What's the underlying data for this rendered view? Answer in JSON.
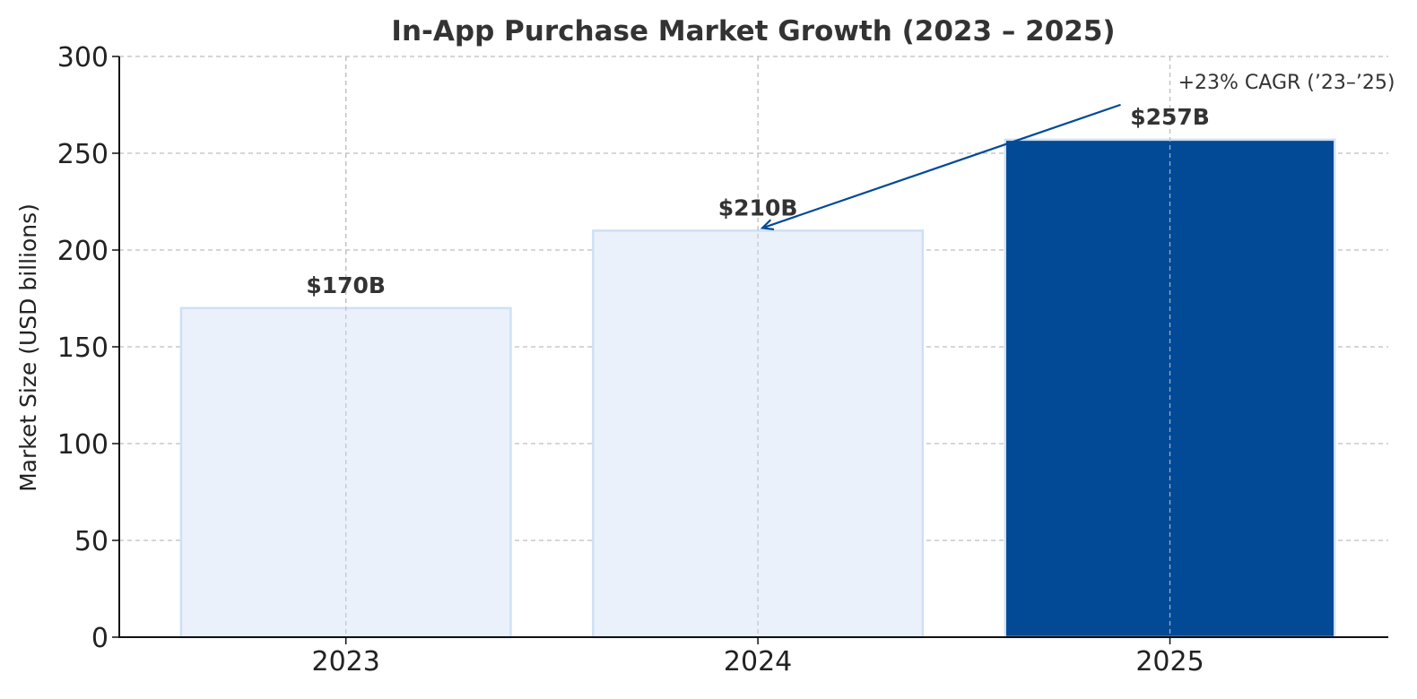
{
  "chart_data": {
    "type": "bar",
    "title": "In-App Purchase Market Growth (2023 – 2025)",
    "xlabel": "",
    "ylabel": "Market Size (USD billions)",
    "categories": [
      "2023",
      "2024",
      "2025"
    ],
    "values": [
      170,
      210,
      257
    ],
    "data_labels": [
      "$170B",
      "$210B",
      "$257B"
    ],
    "ylim": [
      0,
      300
    ],
    "yticks": [
      0,
      50,
      100,
      150,
      200,
      250,
      300
    ],
    "grid": true,
    "colors": {
      "bar_fill": [
        "#eaf1fb",
        "#eaf1fb",
        "#034a96"
      ],
      "bar_edge": "#cfe0f5",
      "annotation": "#034a96",
      "text": "#333333"
    },
    "highlight_index": 2,
    "annotation": {
      "text": "+23% CAGR (’23–’25)",
      "arrow_from": {
        "category": "2025",
        "value": 257
      },
      "arrow_to": {
        "category": "2024",
        "value": 210
      }
    }
  }
}
